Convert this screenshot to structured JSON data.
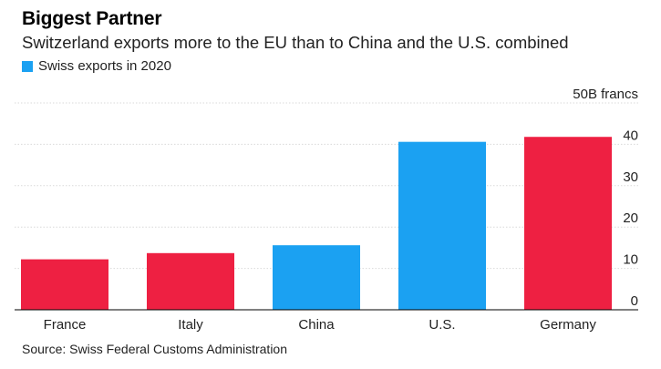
{
  "chart_data": {
    "type": "bar",
    "title": "Biggest Partner",
    "subtitle": "Switzerland exports more to the EU than to China and the U.S. combined",
    "legend": {
      "label": "Swiss exports in 2020",
      "color": "#1ba1f2",
      "placement": "top-left"
    },
    "categories": [
      "France",
      "Italy",
      "China",
      "U.S.",
      "Germany"
    ],
    "values": [
      12.2,
      13.7,
      15.6,
      40.6,
      41.8
    ],
    "bar_colors": [
      "#ee2042",
      "#ee2042",
      "#1ba1f2",
      "#1ba1f2",
      "#ee2042"
    ],
    "y_axis": {
      "position": "right",
      "ticks": [
        0,
        10,
        20,
        30,
        40,
        50
      ],
      "tick_labels": [
        "0",
        "10",
        "20",
        "30",
        "40",
        "50B francs"
      ],
      "ylim": [
        0,
        50
      ]
    },
    "grid": true,
    "source": "Source: Swiss Federal Customs Administration"
  }
}
